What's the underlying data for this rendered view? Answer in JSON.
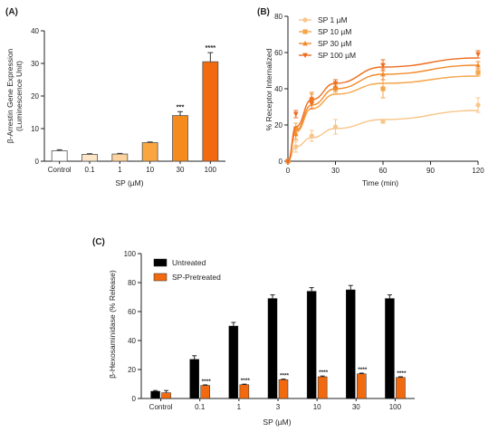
{
  "chart_data": [
    {
      "panel": "(A)",
      "type": "bar",
      "categories": [
        "Control",
        "0.1",
        "1",
        "10",
        "30",
        "100"
      ],
      "values": [
        3.2,
        2.1,
        2.2,
        5.7,
        14.0,
        30.5
      ],
      "errors": [
        0.3,
        0.2,
        0.2,
        0.2,
        1.2,
        2.8
      ],
      "colors": [
        "#ffffff",
        "#fde6c8",
        "#fcd39c",
        "#f9a641",
        "#f58a1f",
        "#f26a10"
      ],
      "annotations": [
        "",
        "",
        "",
        "",
        "***",
        "****"
      ],
      "xlabel": "SP (µM)",
      "ylabel": [
        "β-Arrestin Gene Expression",
        "(Luminescence Unit)"
      ],
      "ylim": [
        0,
        40
      ],
      "yticks": [
        0,
        10,
        20,
        30,
        40
      ]
    },
    {
      "panel": "(B)",
      "type": "line",
      "xlabel": "Time (min)",
      "ylabel": "% Receptor Internalized",
      "xlim": [
        0,
        120
      ],
      "ylim": [
        0,
        80
      ],
      "xticks": [
        0,
        30,
        60,
        90,
        120
      ],
      "yticks": [
        0,
        20,
        40,
        60,
        80
      ],
      "legend_position": "top-left",
      "series": [
        {
          "name": "SP 1 µM",
          "marker": "circle",
          "color": "#f8c58a",
          "x": [
            0,
            5,
            15,
            30,
            60,
            120
          ],
          "y": [
            0,
            8,
            14,
            19,
            22,
            31
          ],
          "err": [
            0,
            3,
            3,
            4,
            1,
            4
          ],
          "fit": [
            0,
            8,
            13,
            18,
            23,
            28
          ]
        },
        {
          "name": "SP 10 µM",
          "marker": "square",
          "color": "#f5a54a",
          "x": [
            0,
            5,
            15,
            30,
            60,
            120
          ],
          "y": [
            0,
            18,
            34,
            40,
            40,
            49
          ],
          "err": [
            0,
            3,
            3,
            2,
            5,
            2
          ],
          "fit": [
            0,
            16,
            29,
            37,
            43,
            47
          ]
        },
        {
          "name": "SP 30 µM",
          "marker": "triangle-up",
          "color": "#f28a2b",
          "x": [
            0,
            5,
            15,
            30,
            60,
            120
          ],
          "y": [
            0,
            15,
            35,
            41,
            48,
            53
          ],
          "err": [
            0,
            3,
            3,
            2,
            3,
            2
          ],
          "fit": [
            0,
            17,
            31,
            40,
            48,
            53
          ]
        },
        {
          "name": "SP 100 µM",
          "marker": "triangle-down",
          "color": "#ee6d1e",
          "x": [
            0,
            5,
            15,
            30,
            60,
            120
          ],
          "y": [
            0,
            26,
            32,
            43,
            53,
            59
          ],
          "err": [
            0,
            2,
            3,
            2,
            3,
            2
          ],
          "fit": [
            0,
            19,
            34,
            43,
            52,
            57
          ]
        }
      ]
    },
    {
      "panel": "(C)",
      "type": "bar",
      "categories": [
        "Control",
        "0.1",
        "1",
        "3",
        "10",
        "30",
        "100"
      ],
      "xlabel": "SP (µM)",
      "ylabel": "β-Hexosaminidase (% Release)",
      "ylim": [
        0,
        100
      ],
      "yticks": [
        0,
        20,
        40,
        60,
        80,
        100
      ],
      "legend_position": "top-left",
      "series": [
        {
          "name": "Untreated",
          "color": "#000000",
          "values": [
            5,
            27,
            50,
            69,
            74,
            75,
            69
          ],
          "errors": [
            0.5,
            2.5,
            2.5,
            2.5,
            2.5,
            3,
            2.5
          ],
          "annotations": [
            "",
            "",
            "",
            "",
            "",
            "",
            ""
          ]
        },
        {
          "name": "SP-Pretreated",
          "color": "#f26a10",
          "values": [
            4,
            9,
            9.5,
            13,
            15,
            17,
            14.5
          ],
          "errors": [
            1.5,
            0.4,
            0.4,
            0.4,
            0.5,
            0.5,
            0.5
          ],
          "annotations": [
            "",
            "****",
            "****",
            "****",
            "****",
            "****",
            "****"
          ]
        }
      ]
    }
  ]
}
